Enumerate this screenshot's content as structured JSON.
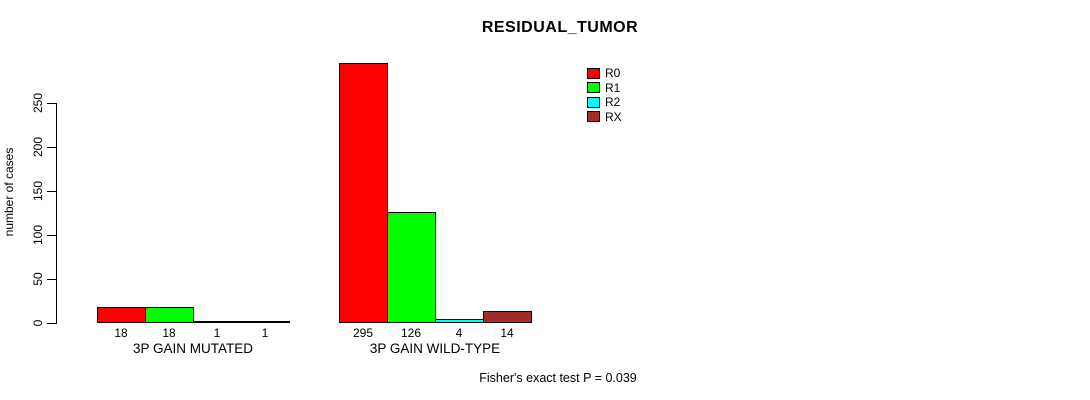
{
  "chart_data": {
    "type": "bar",
    "title": "RESIDUAL_TUMOR",
    "ylabel": "number of cases",
    "xlabel": "",
    "ylim": [
      0,
      250
    ],
    "yticks": [
      0,
      50,
      100,
      150,
      200,
      250
    ],
    "grid": false,
    "legend_position": "top-right-inside",
    "series": [
      "R0",
      "R1",
      "R2",
      "RX"
    ],
    "colors": {
      "R0": "#ff0000",
      "R1": "#00ff00",
      "R2": "#00ffff",
      "RX": "#a52a2a"
    },
    "groups": [
      {
        "label": "3P GAIN MUTATED",
        "values": [
          18,
          18,
          1,
          1
        ]
      },
      {
        "label": "3P GAIN WILD-TYPE",
        "values": [
          295,
          126,
          4,
          14
        ]
      }
    ],
    "annotation": "Fisher's exact test P = 0.039"
  }
}
